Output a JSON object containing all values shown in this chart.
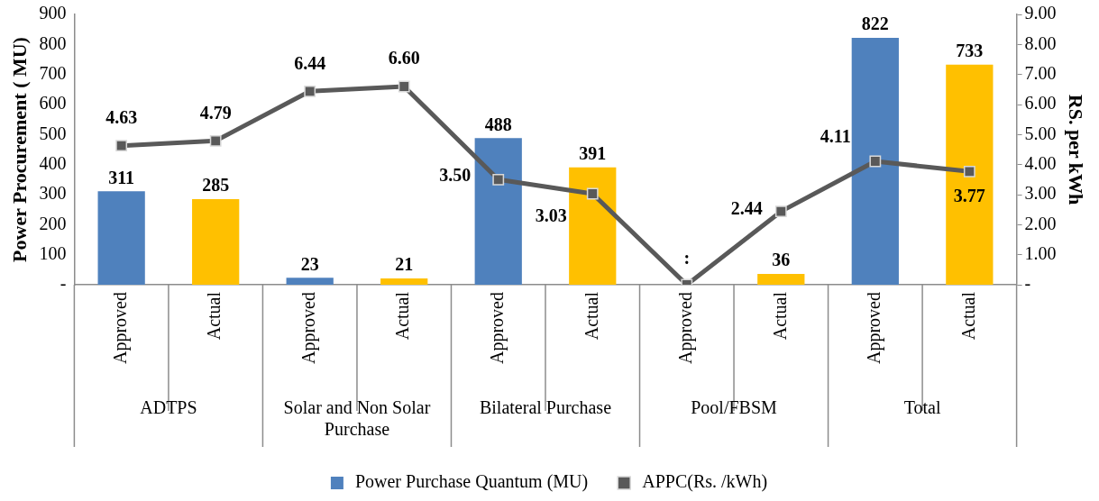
{
  "chart_data": {
    "type": "bar",
    "ylabel": "Power Procurement ( MU)",
    "y2label": "RS. per kWh",
    "categories": [
      "Approved",
      "Actual",
      "Approved",
      "Actual",
      "Approved",
      "Actual",
      "Approved",
      "Actual",
      "Approved",
      "Actual"
    ],
    "annotations": [
      "ADTPS",
      "Solar and Non Solar Purchase",
      "Bilateral Purchase",
      "Pool/FBSM",
      "Total"
    ],
    "series": [
      {
        "name": "Power Purchase Quantum (MU)",
        "color": "#4f81bd",
        "colors": [
          "#4f81bd",
          "#ffc000",
          "#4f81bd",
          "#ffc000",
          "#4f81bd",
          "#ffc000",
          "#4f81bd",
          "#ffc000",
          "#4f81bd",
          "#ffc000"
        ],
        "values": [
          311,
          285,
          23,
          21,
          488,
          391,
          null,
          36,
          822,
          733
        ],
        "value_labels": [
          "311",
          "285",
          "23",
          "21",
          "488",
          "391",
          null,
          "36",
          "822",
          "733"
        ]
      },
      {
        "name": "APPC(Rs. /kWh)",
        "type": "line",
        "axis": "y2",
        "color": "#595959",
        "marker": "square",
        "values": [
          4.63,
          4.79,
          6.44,
          6.6,
          3.5,
          3.03,
          0,
          2.44,
          4.11,
          3.77
        ],
        "value_labels": [
          "4.63",
          "4.79",
          "6.44",
          "6.60",
          "3.50",
          "3.03",
          ":",
          "2.44",
          "4.11",
          "3.77"
        ]
      }
    ],
    "ylim": [
      0,
      900
    ],
    "yticks": [
      {
        "value": 0,
        "label": "-"
      },
      100,
      200,
      300,
      400,
      500,
      600,
      700,
      800,
      900
    ],
    "y2lim": [
      0,
      9
    ],
    "y2ticks": [
      {
        "value": 0,
        "label": "-"
      },
      {
        "value": 1,
        "label": "1.00"
      },
      {
        "value": 2,
        "label": "2.00"
      },
      {
        "value": 3,
        "label": "3.00"
      },
      {
        "value": 4,
        "label": "4.00"
      },
      {
        "value": 5,
        "label": "5.00"
      },
      {
        "value": 6,
        "label": "6.00"
      },
      {
        "value": 7,
        "label": "7.00"
      },
      {
        "value": 8,
        "label": "8.00"
      },
      {
        "value": 9,
        "label": "9.00"
      }
    ],
    "grid": false,
    "legend": "bottom"
  }
}
